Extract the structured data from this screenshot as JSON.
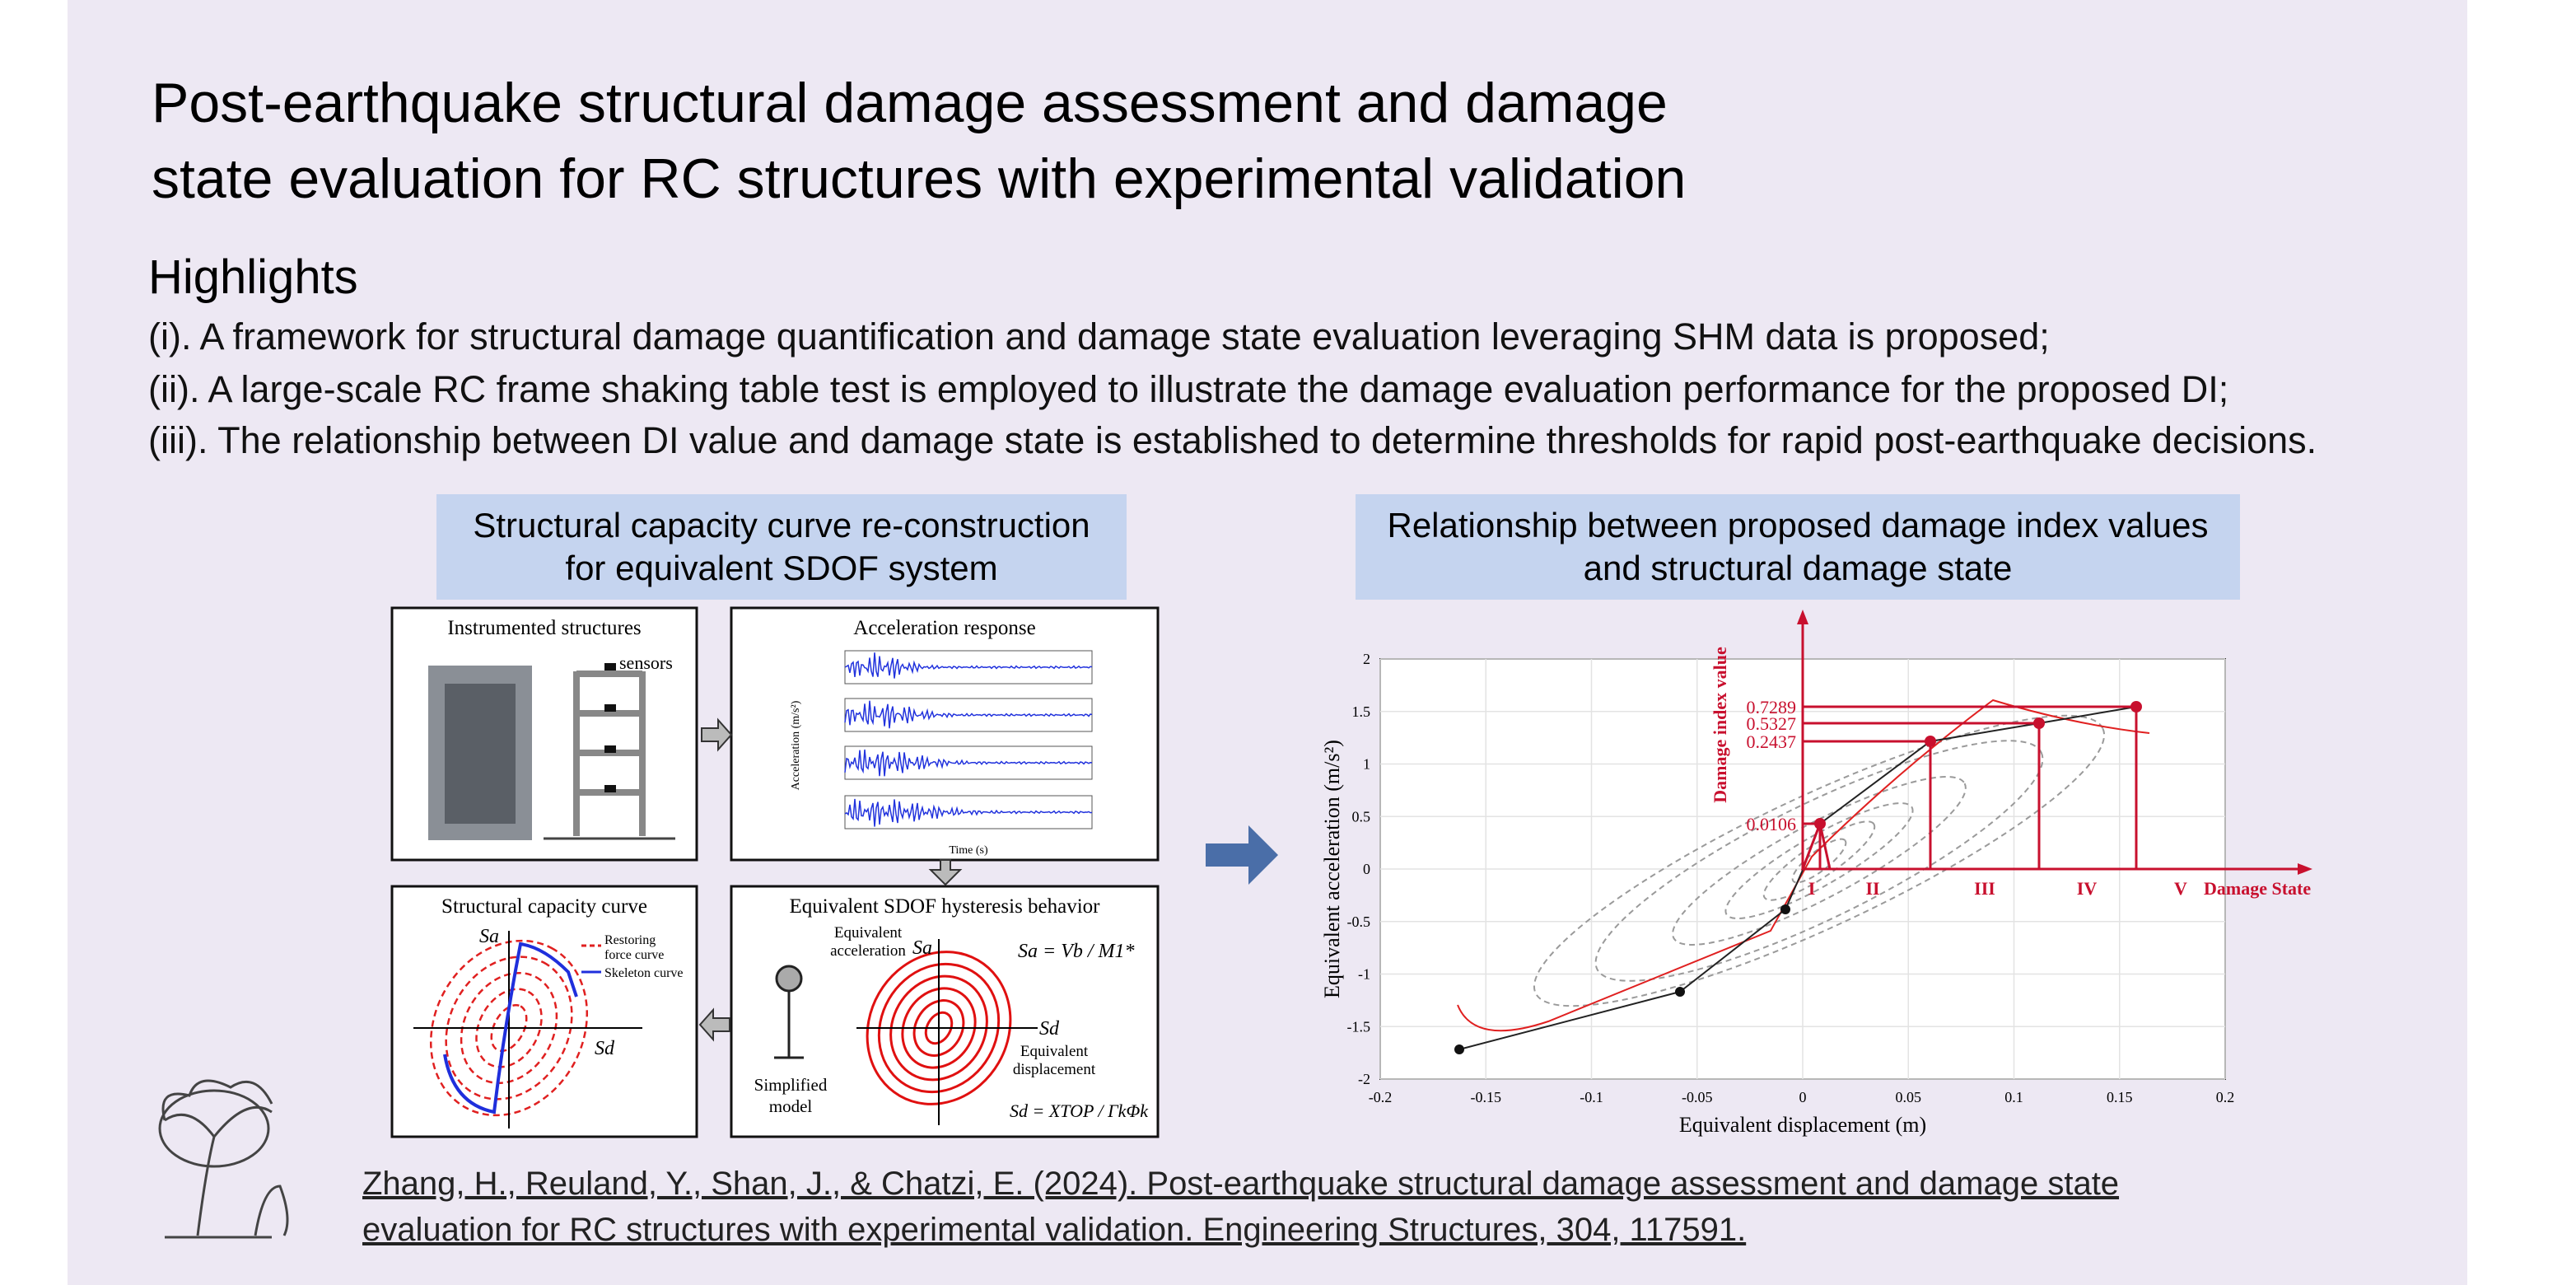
{
  "title": [
    "Post-earthquake structural damage assessment and damage",
    "state evaluation for RC structures with experimental validation"
  ],
  "highlights": {
    "heading": "Highlights",
    "items": [
      "(i). A framework for structural damage quantification and damage state evaluation leveraging SHM data is proposed;",
      "(ii). A large-scale RC frame shaking table test is employed to illustrate the damage evaluation performance for the proposed DI;",
      "(iii). The relationship between DI value and damage state is established to determine thresholds for rapid post-earthquake decisions."
    ]
  },
  "left_panel": {
    "header": [
      "Structural capacity curve re-construction",
      "for equivalent SDOF system"
    ],
    "boxes": {
      "instrumented": {
        "title": "Instrumented structures",
        "sensors": "sensors"
      },
      "acceleration": {
        "title": "Acceleration response",
        "x_label": "Time (s)",
        "y_label": "Acceleration (m/s²)"
      },
      "capacity": {
        "title": "Structural capacity curve",
        "legend": [
          "Restoring",
          "force curve",
          "Skeleton curve"
        ],
        "sa": "Sa",
        "sd": "Sd"
      },
      "sdof": {
        "title": "Equivalent SDOF hysteresis behavior",
        "acc_label": [
          "Equivalent",
          "acceleration"
        ],
        "disp_label": [
          "Equivalent",
          "displacement"
        ],
        "model": [
          "Simplified",
          "model"
        ],
        "sa": "Sa",
        "sd": "Sd",
        "formula_a": "Sa = Vb / M1*",
        "formula_d": "Sd = XTOP / ΓkΦk"
      }
    }
  },
  "right_panel": {
    "header": [
      "Relationship between proposed damage index values",
      "and structural damage state"
    ],
    "x_label": "Equivalent displacement (m)",
    "y_label": "Equivalent acceleration (m/s²)",
    "xlim": [
      -0.2,
      0.2
    ],
    "ylim": [
      -2,
      2
    ],
    "xticks": [
      -0.2,
      -0.15,
      -0.1,
      -0.05,
      0,
      0.05,
      0.1,
      0.15,
      0.2
    ],
    "yticks": [
      -2,
      -1.5,
      -1,
      -0.5,
      0,
      0.5,
      1,
      1.5,
      2
    ],
    "damage_index_axis": "Damage index value",
    "damage_state_axis": "Damage State",
    "damage_states": [
      "I",
      "II",
      "III",
      "IV",
      "V"
    ],
    "damage_index_labels": [
      "0.0106",
      "0.2437",
      "0.5327",
      "0.7289"
    ]
  },
  "citation": [
    "Zhang, H., Reuland, Y., Shan, J., & Chatzi, E. (2024). Post-earthquake structural damage assessment and damage state",
    "evaluation for RC structures with experimental validation. Engineering Structures, 304, 117591."
  ]
}
